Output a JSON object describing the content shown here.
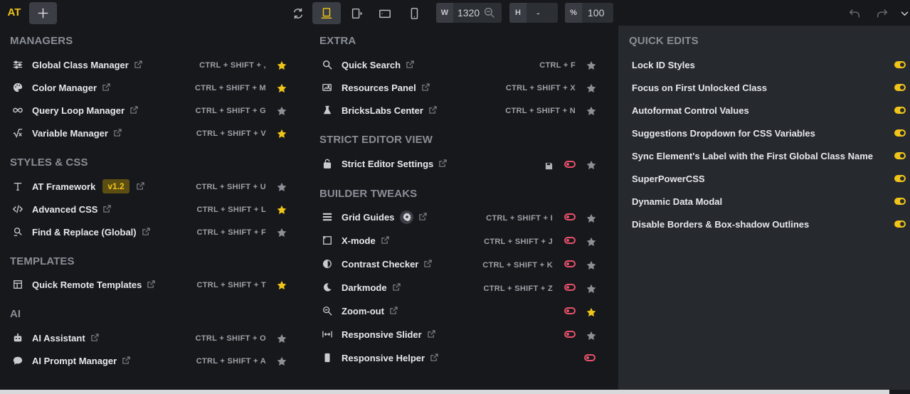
{
  "topbar": {
    "brand": "AT",
    "width_label": "W",
    "width_value": "1320",
    "height_label": "H",
    "height_value": "-",
    "zoom_label": "%",
    "zoom_value": "100"
  },
  "managers": {
    "title": "MANAGERS",
    "items": [
      {
        "label": "Global Class Manager",
        "shortcut": "CTRL + SHIFT + ,",
        "star": true
      },
      {
        "label": "Color Manager",
        "shortcut": "CTRL + SHIFT + M",
        "star": true
      },
      {
        "label": "Query Loop Manager",
        "shortcut": "CTRL + SHIFT + G",
        "star": false
      },
      {
        "label": "Variable Manager",
        "shortcut": "CTRL + SHIFT + V",
        "star": true
      }
    ]
  },
  "styles": {
    "title": "STYLES & CSS",
    "items": [
      {
        "label": "AT Framework",
        "badge": "v1.2",
        "shortcut": "CTRL + SHIFT + U",
        "star": false
      },
      {
        "label": "Advanced CSS",
        "shortcut": "CTRL + SHIFT + L",
        "star": true
      },
      {
        "label": "Find & Replace (Global)",
        "shortcut": "CTRL + SHIFT + F",
        "star": false
      }
    ]
  },
  "templates": {
    "title": "TEMPLATES",
    "items": [
      {
        "label": "Quick Remote Templates",
        "shortcut": "CTRL + SHIFT + T",
        "star": true
      }
    ]
  },
  "ai": {
    "title": "AI",
    "items": [
      {
        "label": "AI Assistant",
        "shortcut": "CTRL + SHIFT + O",
        "star": false
      },
      {
        "label": "AI Prompt Manager",
        "shortcut": "CTRL + SHIFT + A",
        "star": false
      }
    ]
  },
  "extra": {
    "title": "EXTRA",
    "items": [
      {
        "label": "Quick Search",
        "shortcut": "CTRL + F",
        "star": false
      },
      {
        "label": "Resources Panel",
        "shortcut": "CTRL + SHIFT + X",
        "star": false
      },
      {
        "label": "BricksLabs Center",
        "shortcut": "CTRL + SHIFT + N",
        "star": false
      }
    ]
  },
  "strict": {
    "title": "STRICT EDITOR VIEW",
    "items": [
      {
        "label": "Strict Editor Settings",
        "star": false
      }
    ]
  },
  "tweaks": {
    "title": "BUILDER TWEAKS",
    "items": [
      {
        "label": "Grid Guides",
        "shortcut": "CTRL + SHIFT + I",
        "star": false
      },
      {
        "label": "X-mode",
        "shortcut": "CTRL + SHIFT + J",
        "star": false
      },
      {
        "label": "Contrast Checker",
        "shortcut": "CTRL + SHIFT + K",
        "star": false
      },
      {
        "label": "Darkmode",
        "shortcut": "CTRL + SHIFT + Z",
        "star": false
      },
      {
        "label": "Zoom-out",
        "shortcut": "",
        "star": true
      },
      {
        "label": "Responsive Slider",
        "shortcut": "",
        "star": false
      },
      {
        "label": "Responsive Helper",
        "shortcut": ""
      }
    ]
  },
  "quick_edits": {
    "title": "QUICK EDITS",
    "items": [
      {
        "label": "Lock ID Styles",
        "on": true
      },
      {
        "label": "Focus on First Unlocked Class",
        "on": true
      },
      {
        "label": "Autoformat Control Values",
        "on": true
      },
      {
        "label": "Suggestions Dropdown for CSS Variables",
        "on": true
      },
      {
        "label": "Sync Element's Label with the First Global Class Name",
        "on": true
      },
      {
        "label": "SuperPowerCSS",
        "on": true
      },
      {
        "label": "Dynamic Data Modal",
        "on": true
      },
      {
        "label": "Disable Borders & Box-shadow Outlines",
        "on": true
      }
    ]
  },
  "colors": {
    "accent": "#f0c419",
    "toggle_off": "#e8506a",
    "panel": "#26292e",
    "bg": "#16181c"
  }
}
